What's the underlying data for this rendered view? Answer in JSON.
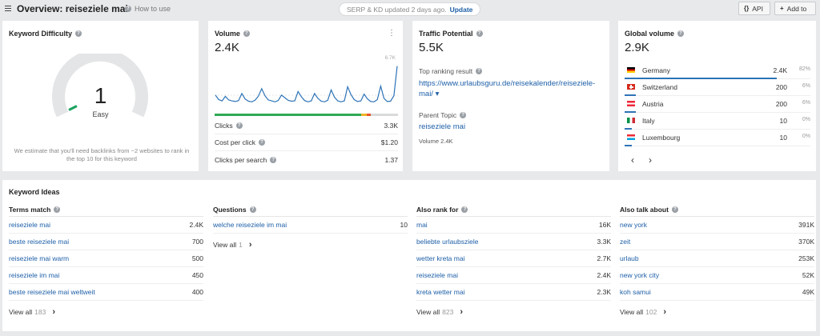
{
  "header": {
    "title": "Overview: reiseziele mai",
    "how_to_use": "How to use",
    "serp_status": "SERP & KD updated 2 days ago.",
    "update_label": "Update",
    "api_label": "API",
    "api_icon": "{}",
    "add_to_label": "Add to",
    "add_icon": "+"
  },
  "keyword_difficulty": {
    "title": "Keyword Difficulty",
    "value": "1",
    "label": "Easy",
    "value_num": 1,
    "note": "We estimate that you'll need backlinks from ~2 websites to rank in the top 10 for this keyword",
    "color": "#1aa260"
  },
  "volume": {
    "title": "Volume",
    "value": "2.4K",
    "chart_max_label": "6.7K",
    "menu": "⋮",
    "clicks_label": "Clicks",
    "clicks_value": "3.3K",
    "cpc_label": "Cost per click",
    "cpc_value": "$1.20",
    "cps_label": "Clicks per search",
    "cps_value": "1.37",
    "cpc_bar": [
      {
        "share": 0.8,
        "color": "#2eab54"
      },
      {
        "share": 0.03,
        "color": "#f0b429"
      },
      {
        "share": 0.02,
        "color": "#e8562a"
      },
      {
        "share": 0.15,
        "color": "#d9dadb"
      }
    ],
    "chart_data": {
      "type": "line",
      "title": "",
      "ymax_label": "6.7K",
      "ylim": [
        0,
        6700
      ],
      "values": [
        2000,
        1300,
        1100,
        1800,
        1250,
        1100,
        1000,
        1150,
        2250,
        1400,
        1050,
        950,
        1200,
        1850,
        3000,
        1900,
        1250,
        1100,
        950,
        1150,
        2000,
        1600,
        1200,
        1050,
        1100,
        2550,
        1750,
        1150,
        950,
        1100,
        2250,
        1500,
        1050,
        950,
        1200,
        2800,
        1700,
        1100,
        950,
        1100,
        3300,
        2100,
        1300,
        1000,
        1100,
        2150,
        1400,
        1000,
        950,
        1300,
        3400,
        1500,
        1000,
        1050,
        1900,
        6500
      ],
      "color": "#2d73b7"
    }
  },
  "traffic_potential": {
    "title": "Traffic Potential",
    "value": "5.5K",
    "top_result_label": "Top ranking result",
    "top_result_url": "https://www.urlaubsguru.de/reisekalender/reiseziele-mai/",
    "caret": "▾",
    "parent_topic_label": "Parent Topic",
    "parent_topic": "reiseziele mai",
    "parent_volume": "Volume 2.4K"
  },
  "global_volume": {
    "title": "Global volume",
    "value": "2.9K",
    "countries": [
      {
        "name": "Germany",
        "value": "2.4K",
        "pct": "82%",
        "share": 0.82,
        "flag": "de"
      },
      {
        "name": "Switzerland",
        "value": "200",
        "pct": "6%",
        "share": 0.06,
        "flag": "ch"
      },
      {
        "name": "Austria",
        "value": "200",
        "pct": "6%",
        "share": 0.06,
        "flag": "at"
      },
      {
        "name": "Italy",
        "value": "10",
        "pct": "0%",
        "share": 0.004,
        "flag": "it"
      },
      {
        "name": "Luxembourg",
        "value": "10",
        "pct": "0%",
        "share": 0.004,
        "flag": "lu"
      }
    ],
    "prev": "‹",
    "next": "›"
  },
  "keyword_ideas": {
    "title": "Keyword Ideas",
    "columns": [
      {
        "title": "Terms match",
        "rows": [
          {
            "kw": "reiseziele mai",
            "v": "2.4K"
          },
          {
            "kw": "beste reiseziele mai",
            "v": "700"
          },
          {
            "kw": "reiseziele mai warm",
            "v": "500"
          },
          {
            "kw": "reiseziele im mai",
            "v": "450"
          },
          {
            "kw": "beste reiseziele mai weltweit",
            "v": "400"
          }
        ],
        "view_all": "View all",
        "count": "183"
      },
      {
        "title": "Questions",
        "rows": [
          {
            "kw": "welche reiseziele im mai",
            "v": "10"
          }
        ],
        "view_all": "View all",
        "count": "1"
      },
      {
        "title": "Also rank for",
        "rows": [
          {
            "kw": "mai",
            "v": "16K"
          },
          {
            "kw": "beliebte urlaubsziele",
            "v": "3.3K"
          },
          {
            "kw": "wetter kreta mai",
            "v": "2.7K"
          },
          {
            "kw": "reiseziele mai",
            "v": "2.4K"
          },
          {
            "kw": "kreta wetter mai",
            "v": "2.3K"
          }
        ],
        "view_all": "View all",
        "count": "823"
      },
      {
        "title": "Also talk about",
        "rows": [
          {
            "kw": "new york",
            "v": "391K"
          },
          {
            "kw": "zeit",
            "v": "370K"
          },
          {
            "kw": "urlaub",
            "v": "253K"
          },
          {
            "kw": "new york city",
            "v": "52K"
          },
          {
            "kw": "koh samui",
            "v": "49K"
          }
        ],
        "view_all": "View all",
        "count": "102"
      }
    ],
    "arrow": "›"
  },
  "icons": {
    "help": "help-icon",
    "menu": "hamburger-icon"
  }
}
